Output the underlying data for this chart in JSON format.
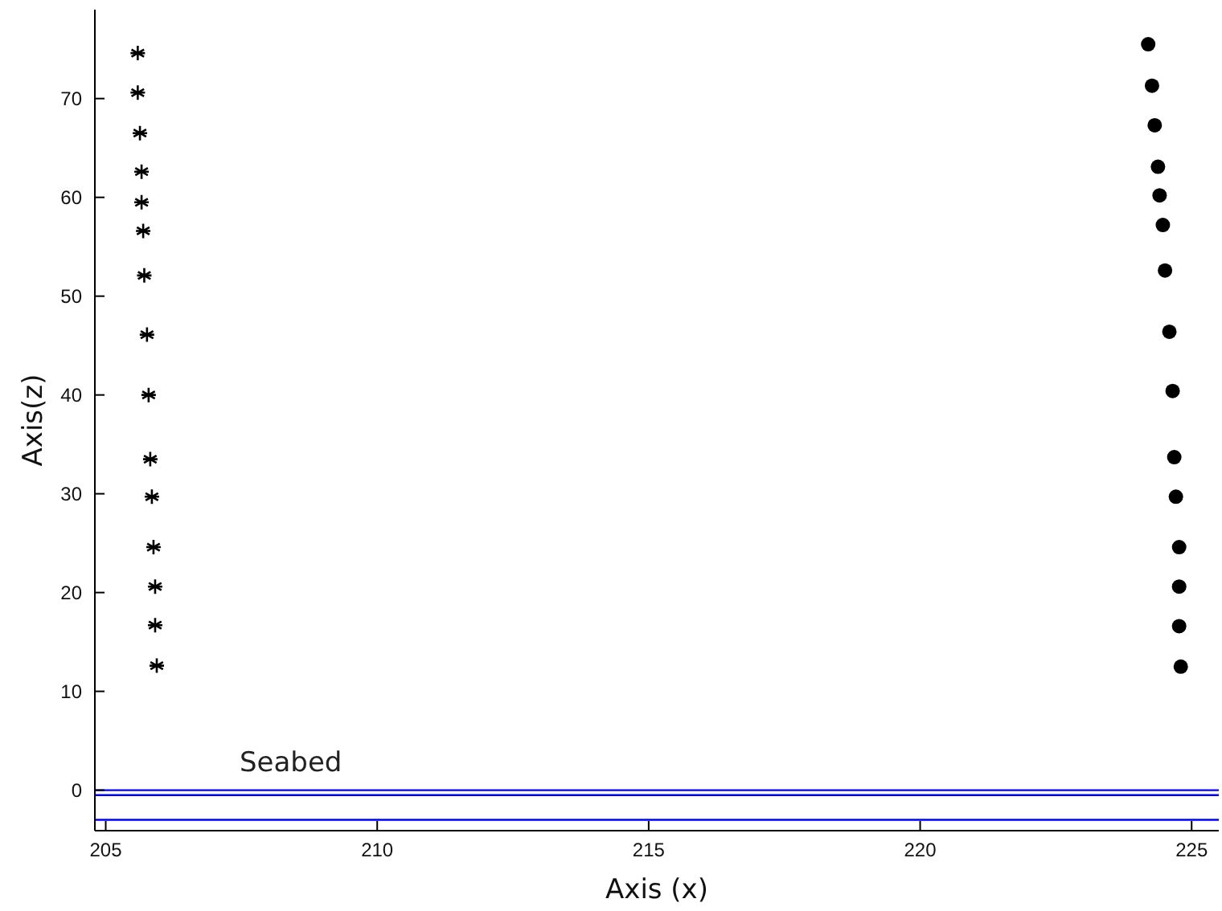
{
  "chart_data": {
    "type": "scatter",
    "xlabel": "Axis (x)",
    "ylabel": "Axis(z)",
    "xlim": [
      204.8,
      225.5
    ],
    "ylim": [
      -4.1,
      79
    ],
    "xticks": [
      205,
      210,
      215,
      220,
      225
    ],
    "yticks": [
      0,
      10,
      20,
      30,
      40,
      50,
      60,
      70
    ],
    "grid": false,
    "series": [
      {
        "color": "#000000",
        "marker": "cross",
        "x": [
          205.59,
          205.59,
          205.63,
          205.66,
          205.66,
          205.69,
          205.71,
          205.76,
          205.79,
          205.82,
          205.85,
          205.88,
          205.91,
          205.91,
          205.94
        ],
        "values": [
          74.6,
          70.6,
          66.5,
          62.6,
          59.5,
          56.6,
          52.1,
          46.1,
          40.0,
          33.5,
          29.7,
          24.6,
          20.6,
          16.7,
          12.6
        ]
      },
      {
        "color": "#000000",
        "marker": "circle",
        "x": [
          224.2,
          224.27,
          224.32,
          224.38,
          224.41,
          224.47,
          224.51,
          224.59,
          224.65,
          224.68,
          224.71,
          224.77,
          224.77,
          224.77,
          224.8
        ],
        "values": [
          75.5,
          71.3,
          67.3,
          63.1,
          60.2,
          57.2,
          52.6,
          46.4,
          40.4,
          33.7,
          29.7,
          24.6,
          20.6,
          16.6,
          12.5
        ]
      }
    ],
    "ref_lines": [
      {
        "axis": "y",
        "value": 0,
        "label": "Seabed",
        "color": "#0000ff"
      },
      {
        "axis": "y",
        "value": -0.5,
        "color": "#0000ff"
      },
      {
        "axis": "y",
        "value": -3,
        "color": "#0000ff"
      }
    ]
  }
}
